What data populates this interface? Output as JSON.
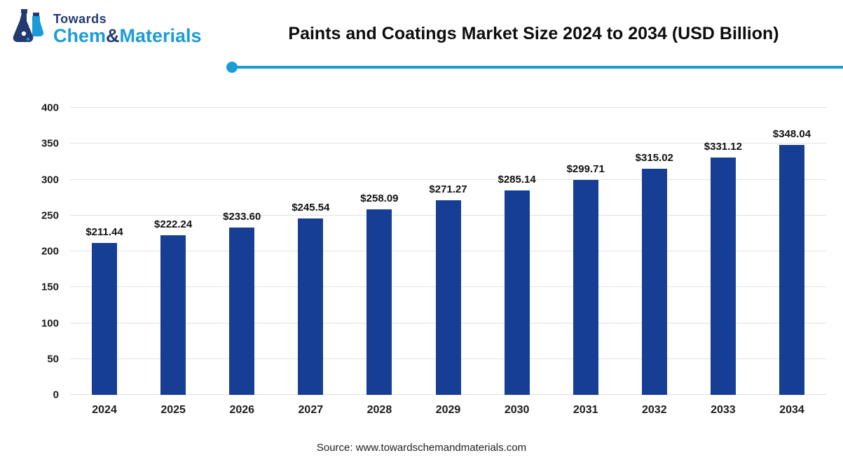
{
  "logo": {
    "line1": "Towards",
    "line2_part1": "Chem",
    "amp": "&",
    "line2_part2": "Materials"
  },
  "header": {
    "title": "Paints and Coatings Market Size 2024 to 2034 (USD Billion)"
  },
  "footer": {
    "source": "Source: www.towardschemandmaterials.com"
  },
  "colors": {
    "bar": "#163e94",
    "accent_line": "#1b9cd8",
    "logo_navy": "#233a70",
    "logo_blue": "#1b9cd8",
    "gridline": "#e2e2e2"
  },
  "chart_data": {
    "type": "bar",
    "title": "Paints and Coatings Market Size 2024 to 2034 (USD Billion)",
    "categories": [
      "2024",
      "2025",
      "2026",
      "2027",
      "2028",
      "2029",
      "2030",
      "2031",
      "2032",
      "2033",
      "2034"
    ],
    "values": [
      211.44,
      222.24,
      233.6,
      245.54,
      258.09,
      271.27,
      285.14,
      299.71,
      315.02,
      331.12,
      348.04
    ],
    "labels": [
      "$211.44",
      "$222.24",
      "$233.60",
      "$245.54",
      "$258.09",
      "$271.27",
      "$285.14",
      "$299.71",
      "$315.02",
      "$331.12",
      "$348.04"
    ],
    "xlabel": "",
    "ylabel": "",
    "ylim": [
      0,
      400
    ],
    "yticks": [
      0,
      50,
      100,
      150,
      200,
      250,
      300,
      350,
      400
    ],
    "grid": true,
    "legend": false,
    "bar_color": "#163e94"
  }
}
